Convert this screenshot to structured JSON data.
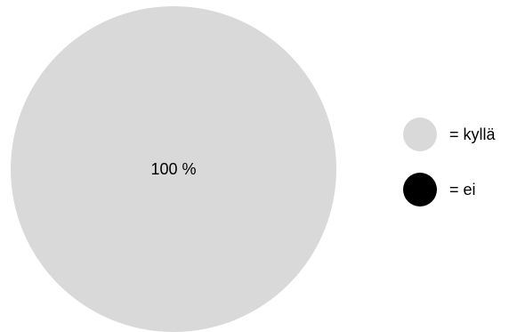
{
  "chart_data": {
    "type": "pie",
    "slices": [
      {
        "label": "100 %",
        "value": 100,
        "color": "#d9d9d9"
      },
      {
        "label": "",
        "value": 0,
        "color": "#000000"
      }
    ],
    "legend": {
      "placement": "right",
      "entries": [
        {
          "text": "= kyllä",
          "color": "#d9d9d9"
        },
        {
          "text": "= ei",
          "color": "#000000"
        }
      ]
    }
  }
}
